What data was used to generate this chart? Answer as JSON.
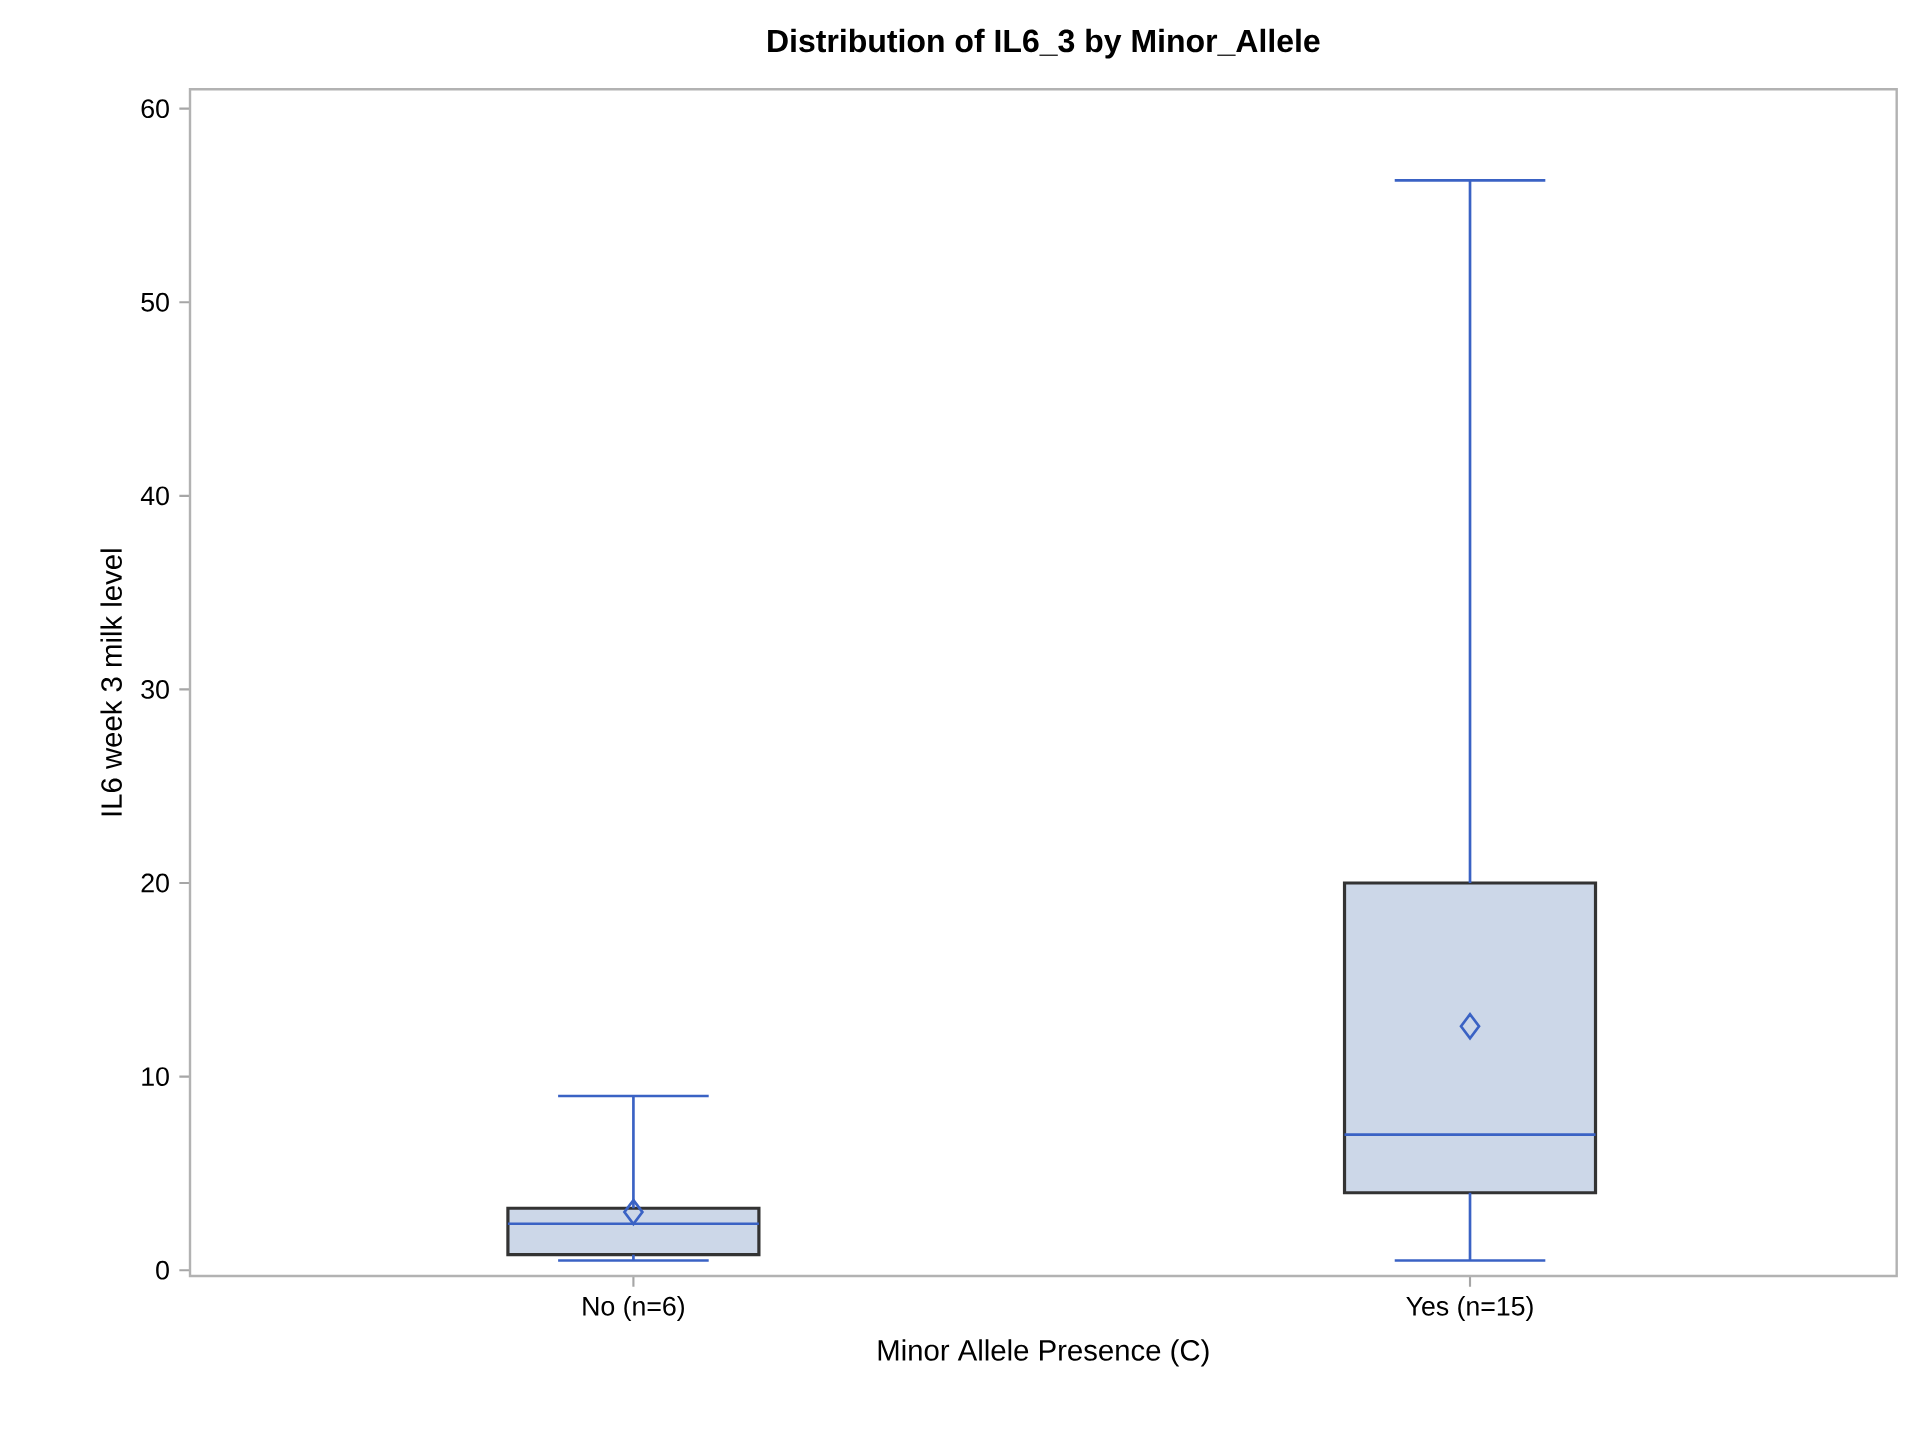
{
  "chart_data": {
    "type": "box",
    "title": "Distribution of IL6_3 by Minor_Allele",
    "xlabel": "Minor Allele Presence (C)",
    "ylabel": "IL6 week 3 milk level",
    "categories": [
      "No (n=6)",
      "Yes (n=15)"
    ],
    "boxes": [
      {
        "low": 0.5,
        "q1": 0.8,
        "median": 2.4,
        "q3": 3.2,
        "high": 9.0,
        "mean": 3.0
      },
      {
        "low": 0.5,
        "q1": 4.0,
        "median": 7.0,
        "q3": 20.0,
        "high": 56.3,
        "mean": 12.6
      }
    ],
    "color": "#ccd7e8",
    "ylim": [
      -0.3,
      61
    ],
    "yticks": [
      0,
      10,
      20,
      30,
      40,
      50,
      60
    ],
    "grid": false,
    "marker": "diamond"
  }
}
